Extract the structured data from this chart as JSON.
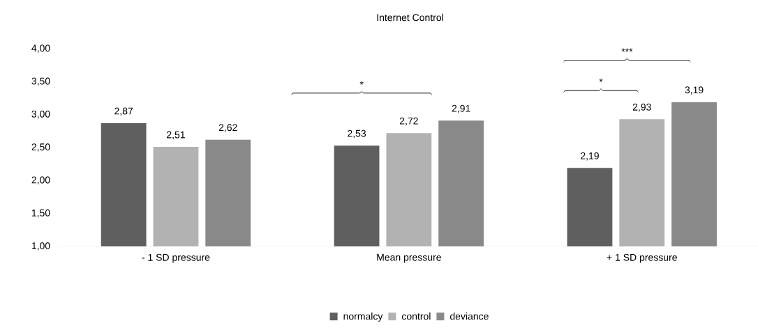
{
  "chart_data": {
    "type": "bar",
    "title": "Internet Control",
    "categories": [
      "- 1 SD pressure",
      "Mean pressure",
      "+ 1 SD pressure"
    ],
    "series": [
      {
        "name": "normalcy",
        "color": "#5f5f5f",
        "values": [
          2.87,
          2.53,
          2.19
        ],
        "value_labels": [
          "2,87",
          "2,53",
          "2,19"
        ]
      },
      {
        "name": "control",
        "color": "#b2b2b2",
        "values": [
          2.51,
          2.72,
          2.93
        ],
        "value_labels": [
          "2,51",
          "2,72",
          "2,93"
        ]
      },
      {
        "name": "deviance",
        "color": "#898989",
        "values": [
          2.62,
          2.91,
          3.19
        ],
        "value_labels": [
          "2,62",
          "2,91",
          "3,19"
        ]
      }
    ],
    "ylim": [
      1,
      4
    ],
    "yticks": [
      {
        "value": 1,
        "label": "1,00"
      },
      {
        "value": 1.5,
        "label": "1,50"
      },
      {
        "value": 2,
        "label": "2,00"
      },
      {
        "value": 2.5,
        "label": "2,50"
      },
      {
        "value": 3,
        "label": "3,00"
      },
      {
        "value": 3.5,
        "label": "3,50"
      },
      {
        "value": 4,
        "label": "4,00"
      }
    ],
    "legend": "bottom",
    "annotations": [
      "*",
      "*",
      "***"
    ]
  }
}
